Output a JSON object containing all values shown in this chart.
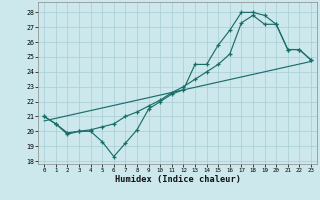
{
  "background_color": "#cce8ec",
  "grid_color": "#a8cdd4",
  "line_color": "#1a6e6a",
  "xlabel": "Humidex (Indice chaleur)",
  "xlim": [
    -0.5,
    23.5
  ],
  "ylim": [
    17.8,
    28.7
  ],
  "yticks": [
    18,
    19,
    20,
    21,
    22,
    23,
    24,
    25,
    26,
    27,
    28
  ],
  "xticks": [
    0,
    1,
    2,
    3,
    4,
    5,
    6,
    7,
    8,
    9,
    10,
    11,
    12,
    13,
    14,
    15,
    16,
    17,
    18,
    19,
    20,
    21,
    22,
    23
  ],
  "line1_x": [
    0,
    1,
    2,
    3,
    4,
    5,
    6,
    7,
    8,
    9,
    10,
    11,
    12,
    13,
    14,
    15,
    16,
    17,
    18,
    19,
    20,
    21,
    22,
    23
  ],
  "line1_y": [
    21.0,
    20.5,
    19.8,
    20.0,
    20.0,
    19.3,
    18.3,
    19.2,
    20.1,
    21.5,
    22.0,
    22.5,
    22.8,
    24.5,
    24.5,
    25.8,
    26.8,
    28.0,
    28.0,
    27.8,
    27.2,
    25.5,
    25.5,
    24.8
  ],
  "line2_x": [
    0,
    1,
    2,
    3,
    4,
    5,
    6,
    7,
    8,
    9,
    10,
    11,
    12,
    13,
    14,
    15,
    16,
    17,
    18,
    19,
    20,
    21,
    22,
    23
  ],
  "line2_y": [
    21.0,
    20.5,
    19.9,
    20.0,
    20.1,
    20.3,
    20.5,
    21.0,
    21.3,
    21.7,
    22.1,
    22.6,
    23.0,
    23.5,
    24.0,
    24.5,
    25.2,
    27.3,
    27.8,
    27.2,
    27.2,
    25.5,
    25.5,
    24.8
  ],
  "line3_x": [
    0,
    23
  ],
  "line3_y": [
    20.7,
    24.7
  ]
}
